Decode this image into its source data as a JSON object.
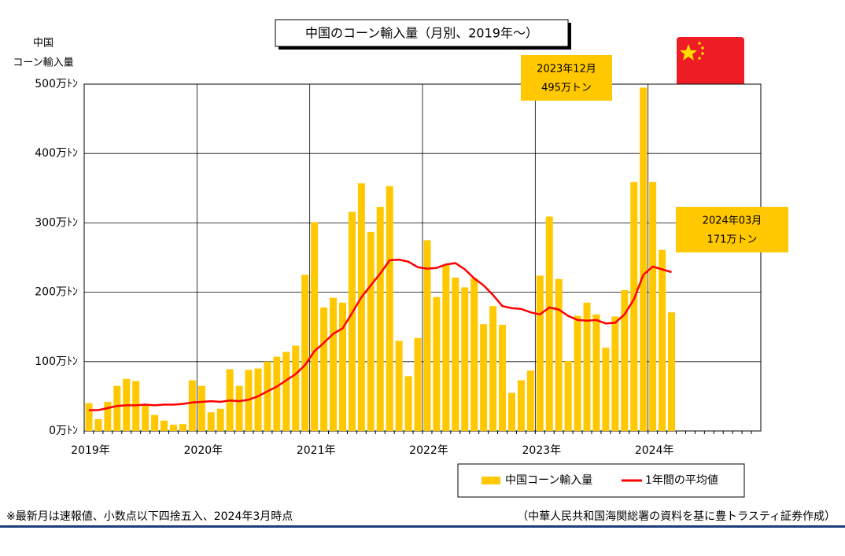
{
  "chart_data": {
    "type": "bar",
    "title": "中国のコーン輸入量（月別、2019年～）",
    "y_axis_label": [
      "中国",
      "コーン輸入量"
    ],
    "categories": [
      "2019年",
      null,
      null,
      null,
      null,
      null,
      null,
      null,
      null,
      null,
      null,
      null,
      "2020年",
      null,
      null,
      null,
      null,
      null,
      null,
      null,
      null,
      null,
      null,
      null,
      "2021年",
      null,
      null,
      null,
      null,
      null,
      null,
      null,
      null,
      null,
      null,
      null,
      "2022年",
      null,
      null,
      null,
      null,
      null,
      null,
      null,
      null,
      null,
      null,
      null,
      "2023年",
      null,
      null,
      null,
      null,
      null,
      null,
      null,
      null,
      null,
      null,
      null,
      "2024年",
      null,
      null,
      null,
      null,
      null,
      null,
      null,
      null,
      null,
      null,
      null
    ],
    "series": [
      {
        "name": "中国コーン輸入量",
        "type": "bar",
        "color": "#ffc800",
        "values": [
          40,
          17,
          42,
          65,
          75,
          72,
          38,
          23,
          15,
          9,
          10,
          73,
          65,
          27,
          32,
          89,
          65,
          88,
          90,
          100,
          107,
          114,
          123,
          225,
          301,
          178,
          192,
          185,
          316,
          357,
          287,
          323,
          353,
          130,
          79,
          134,
          275,
          193,
          240,
          221,
          207,
          220,
          154,
          180,
          153,
          55,
          73,
          87,
          224,
          309,
          219,
          101,
          166,
          185,
          168,
          120,
          165,
          203,
          359,
          495,
          359,
          261,
          171,
          null,
          null,
          null,
          null,
          null,
          null,
          null,
          null,
          null
        ]
      },
      {
        "name": "1年間の平均値",
        "type": "line",
        "color": "#ff0000",
        "values": [
          30,
          30,
          33,
          36,
          37,
          37,
          38,
          37,
          38,
          38,
          39,
          41,
          42,
          43,
          42,
          44,
          43,
          45,
          50,
          57,
          64,
          73,
          82,
          95,
          115,
          127,
          140,
          148,
          170,
          193,
          210,
          227,
          246,
          247,
          244,
          236,
          234,
          235,
          240,
          242,
          233,
          220,
          210,
          196,
          180,
          177,
          176,
          171,
          168,
          178,
          175,
          166,
          160,
          159,
          160,
          155,
          156,
          168,
          190,
          225,
          237,
          233,
          229,
          null,
          null,
          null,
          null,
          null,
          null,
          null,
          null,
          null
        ]
      }
    ],
    "ylim": [
      0,
      500
    ],
    "yticks": [
      {
        "value": 0,
        "label": "0万ﾄﾝ"
      },
      {
        "value": 100,
        "label": "100万ﾄﾝ"
      },
      {
        "value": 200,
        "label": "200万ﾄﾝ"
      },
      {
        "value": 300,
        "label": "300万ﾄﾝ"
      },
      {
        "value": 400,
        "label": "400万ﾄﾝ"
      },
      {
        "value": 500,
        "label": "500万ﾄﾝ"
      }
    ],
    "grid": true,
    "annotations": [
      {
        "lines": [
          "2023年12月",
          "495万トン"
        ]
      },
      {
        "lines": [
          "2024年03月",
          "171万トン"
        ]
      }
    ],
    "footnote_left": "※最新月は速報値、小数点以下四捨五入、2024年3月時点",
    "footnote_right": "（中華人民共和国海関総署の資料を基に豊トラスティ証券作成）"
  }
}
